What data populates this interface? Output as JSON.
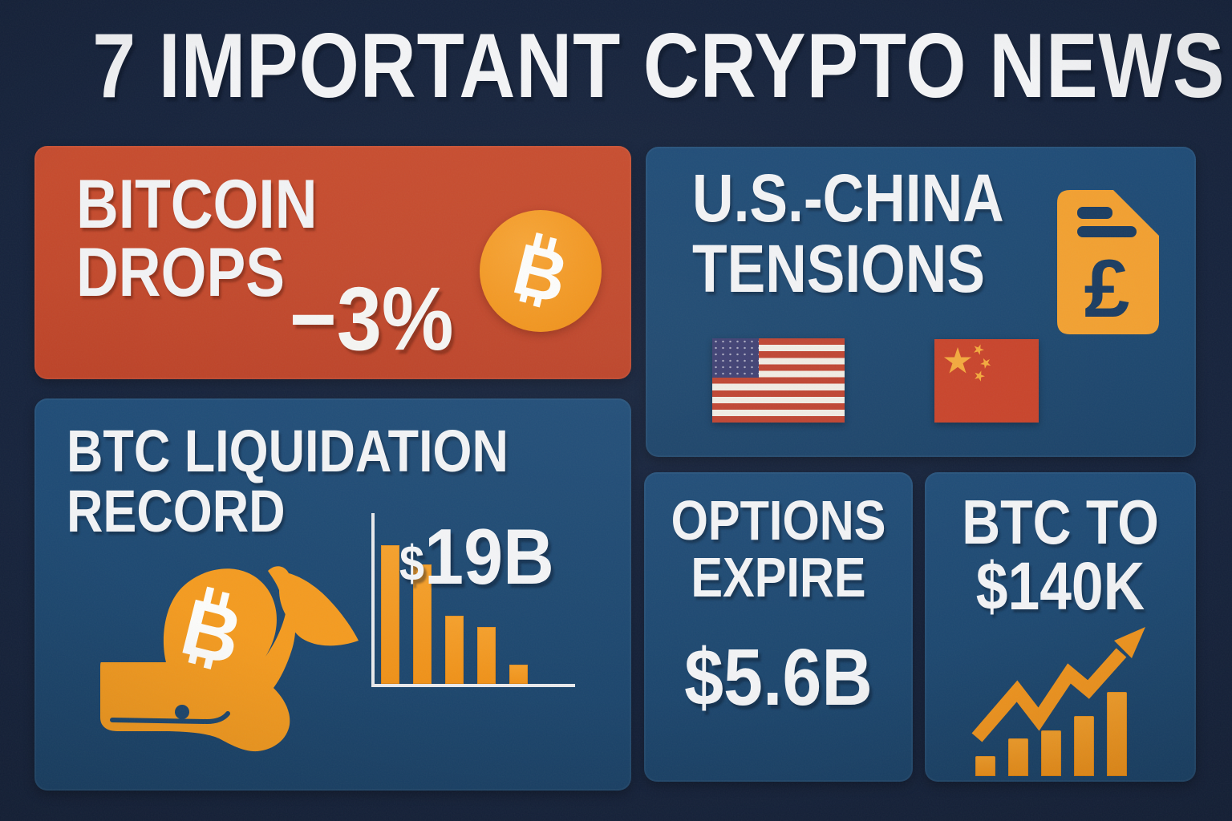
{
  "title": "7 IMPORTANT CRYPTO NEWS",
  "palette": {
    "background": "#16233c",
    "card_blue": "#1d4870",
    "card_red": "#c2482b",
    "accent_orange": "#f2961f",
    "text_white": "#f3f4f6",
    "detail_navy": "#1a3c61"
  },
  "cards": {
    "bitcoin_drops": {
      "title_line1": "BITCOIN",
      "title_line2": "DROPS",
      "change": "−3%",
      "icon": "bitcoin-coin-icon"
    },
    "us_china": {
      "title_line1": "U.S.-CHINA",
      "title_line2": "TENSIONS",
      "icons": [
        "tariff-document-pound-icon",
        "us-flag-icon",
        "china-flag-icon"
      ]
    },
    "btc_liquidation": {
      "title_line1": "BTC LIQUIDATION",
      "title_line2": "RECORD",
      "amount_currency": "$",
      "amount": "19B",
      "icon": "bitcoin-whale-icon",
      "chart": {
        "type": "bar",
        "trend": "descending",
        "bars_relative": [
          1,
          0.86,
          0.49,
          0.41,
          0.14
        ]
      }
    },
    "options_expire": {
      "title_line1": "OPTIONS",
      "title_line2": "EXPIRE",
      "amount": "$5.6B"
    },
    "btc_target": {
      "title_line1": "BTC TO",
      "title_line2": "$140K",
      "icon": "growth-arrow-icon",
      "chart": {
        "type": "bar",
        "trend": "ascending",
        "bars_relative": [
          0.24,
          0.45,
          0.54,
          0.71,
          1
        ]
      }
    }
  }
}
